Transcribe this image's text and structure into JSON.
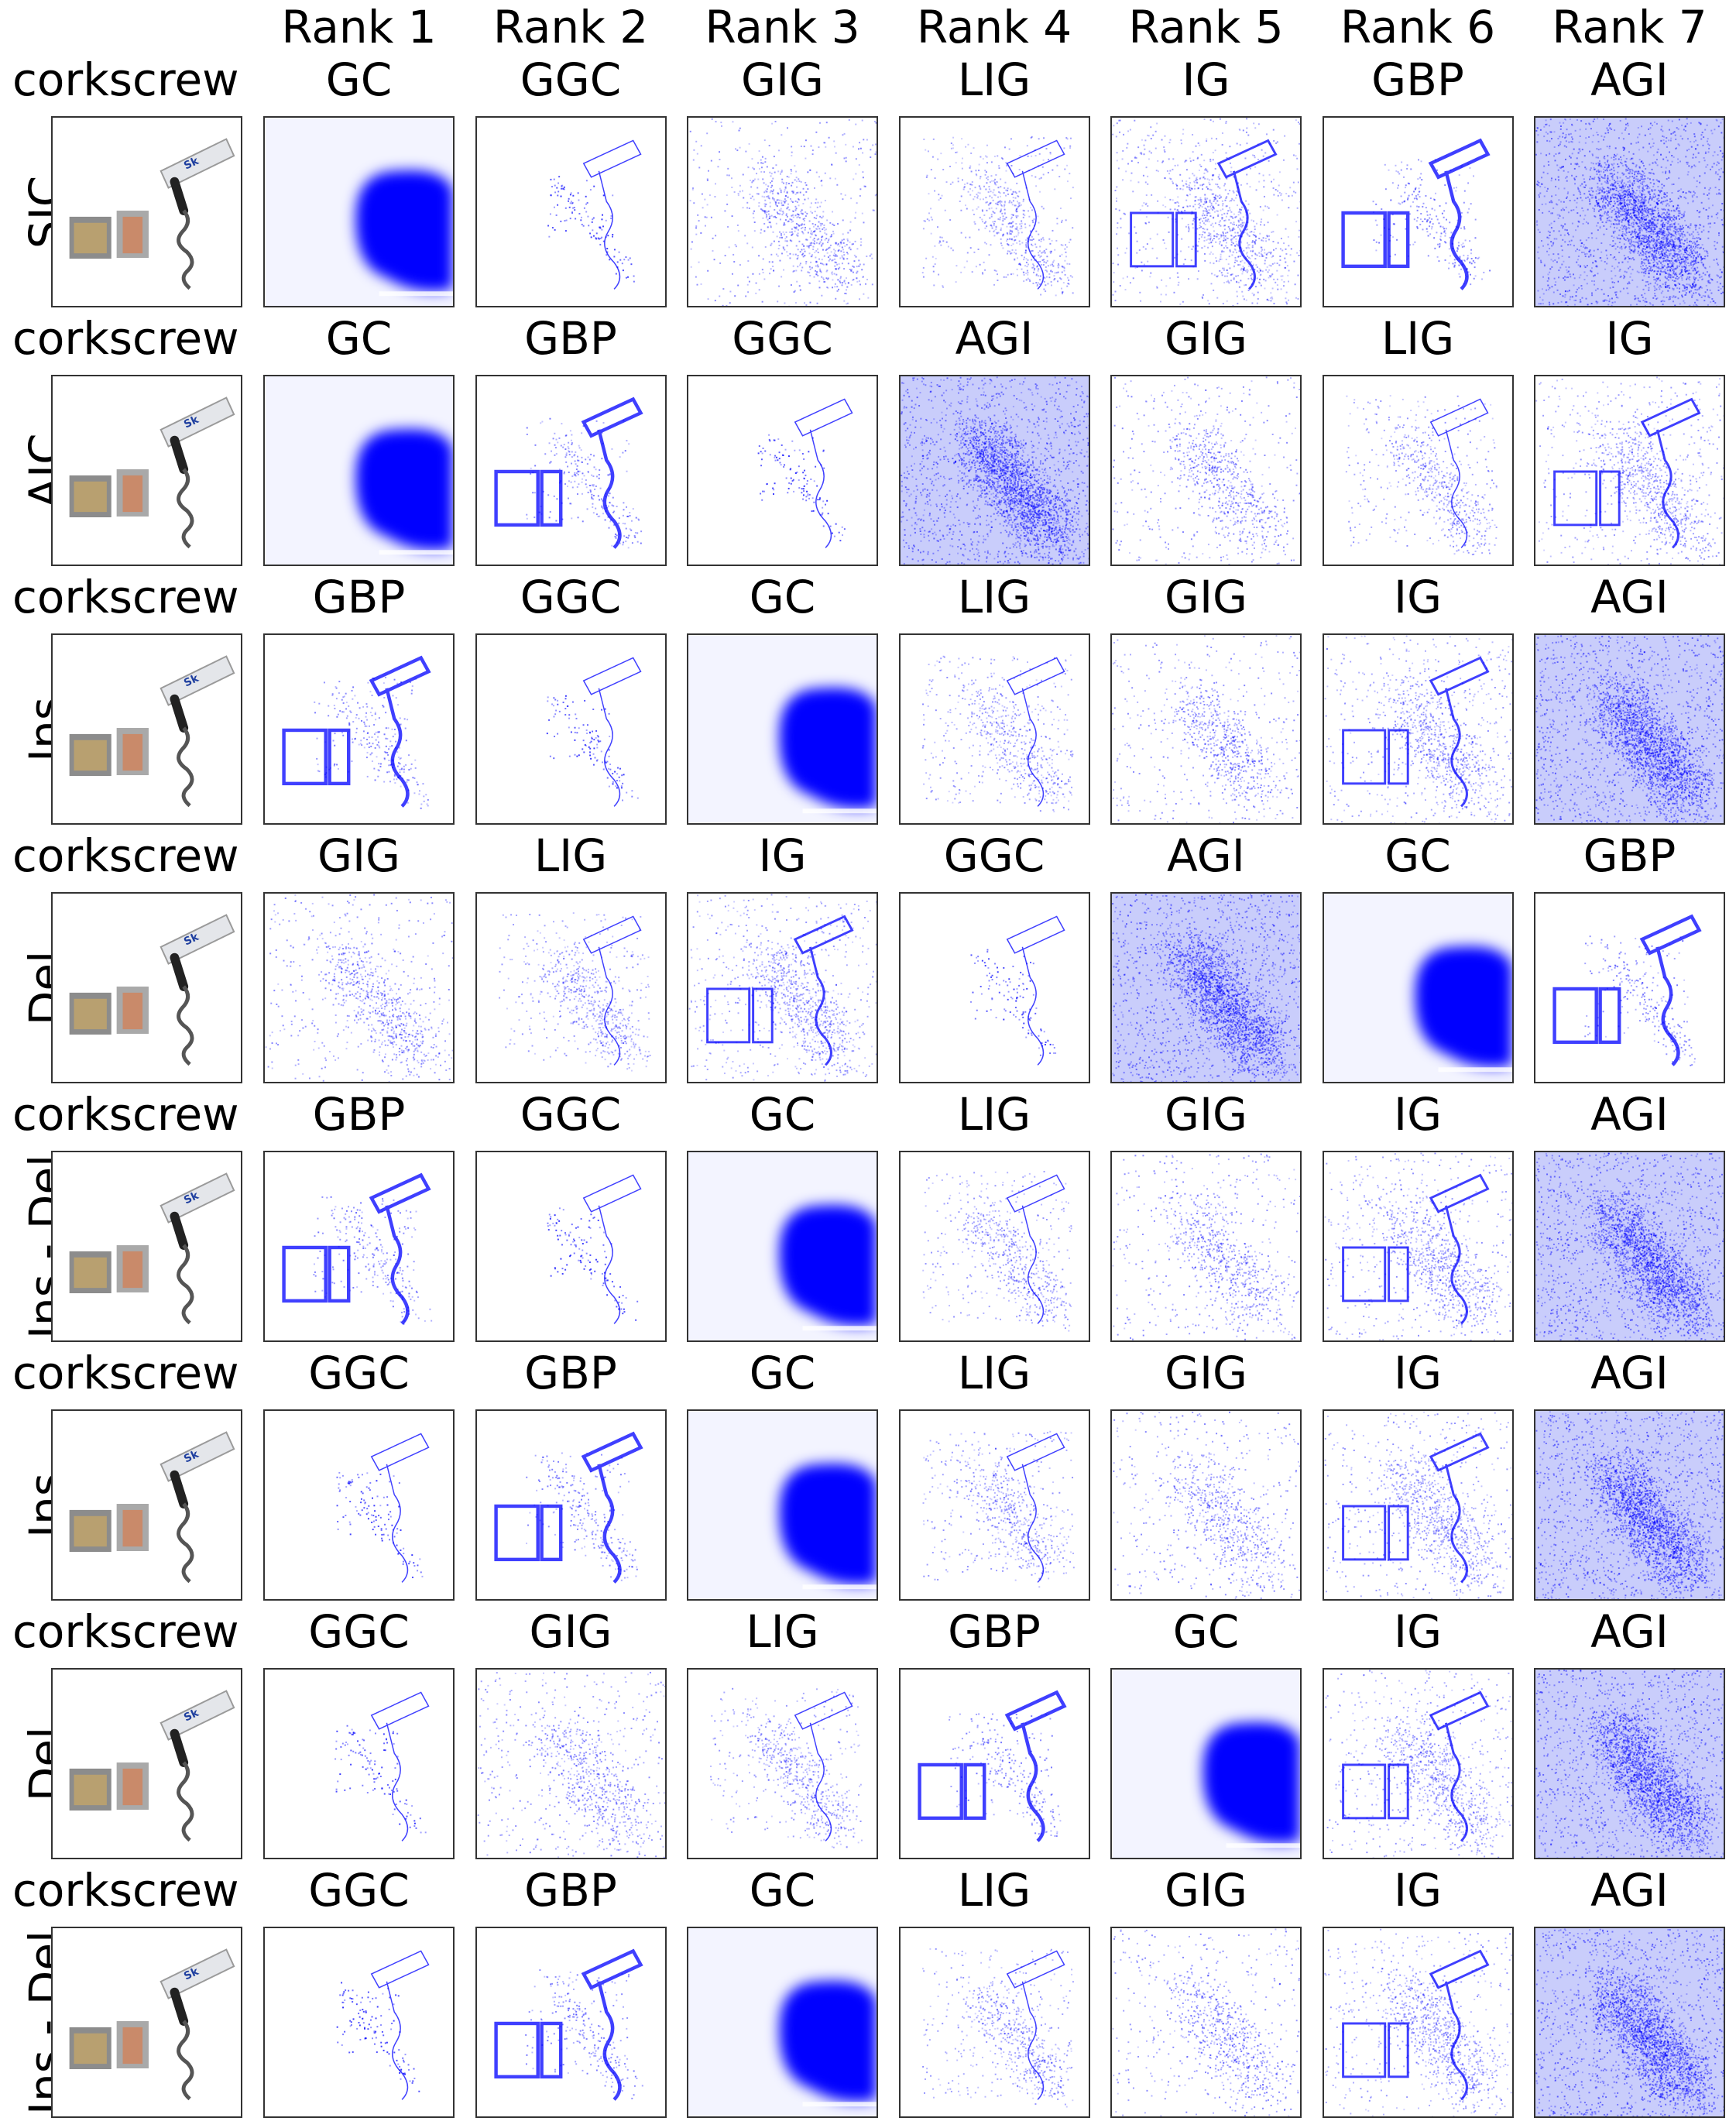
{
  "ranks": [
    "Rank 1",
    "Rank 2",
    "Rank 3",
    "Rank 4",
    "Rank 5",
    "Rank 6",
    "Rank 7"
  ],
  "rows": [
    {
      "label": "SIC",
      "class": "corkscrew",
      "methods": [
        "GC",
        "GGC",
        "GIG",
        "LIG",
        "IG",
        "GBP",
        "AGI"
      ]
    },
    {
      "label": "AIC",
      "class": "corkscrew",
      "methods": [
        "GC",
        "GBP",
        "GGC",
        "AGI",
        "GIG",
        "LIG",
        "IG"
      ]
    },
    {
      "label": "Ins",
      "class": "corkscrew",
      "methods": [
        "GBP",
        "GGC",
        "GC",
        "LIG",
        "GIG",
        "IG",
        "AGI"
      ]
    },
    {
      "label": "Del",
      "class": "corkscrew",
      "methods": [
        "GIG",
        "LIG",
        "IG",
        "GGC",
        "AGI",
        "GC",
        "GBP"
      ]
    },
    {
      "label": "Ins - Del",
      "class": "corkscrew",
      "methods": [
        "GBP",
        "GGC",
        "GC",
        "LIG",
        "GIG",
        "IG",
        "AGI"
      ]
    },
    {
      "label": "Ins",
      "class": "corkscrew",
      "methods": [
        "GGC",
        "GBP",
        "GC",
        "LIG",
        "GIG",
        "IG",
        "AGI"
      ]
    },
    {
      "label": "Del",
      "class": "corkscrew",
      "methods": [
        "GGC",
        "GIG",
        "LIG",
        "GBP",
        "GC",
        "IG",
        "AGI"
      ]
    },
    {
      "label": "Ins - Del",
      "class": "corkscrew",
      "methods": [
        "GGC",
        "GBP",
        "GC",
        "LIG",
        "GIG",
        "IG",
        "AGI"
      ]
    }
  ],
  "colors": {
    "saliency": "#0000ff",
    "background": "#ffffff",
    "border": "#333333"
  }
}
